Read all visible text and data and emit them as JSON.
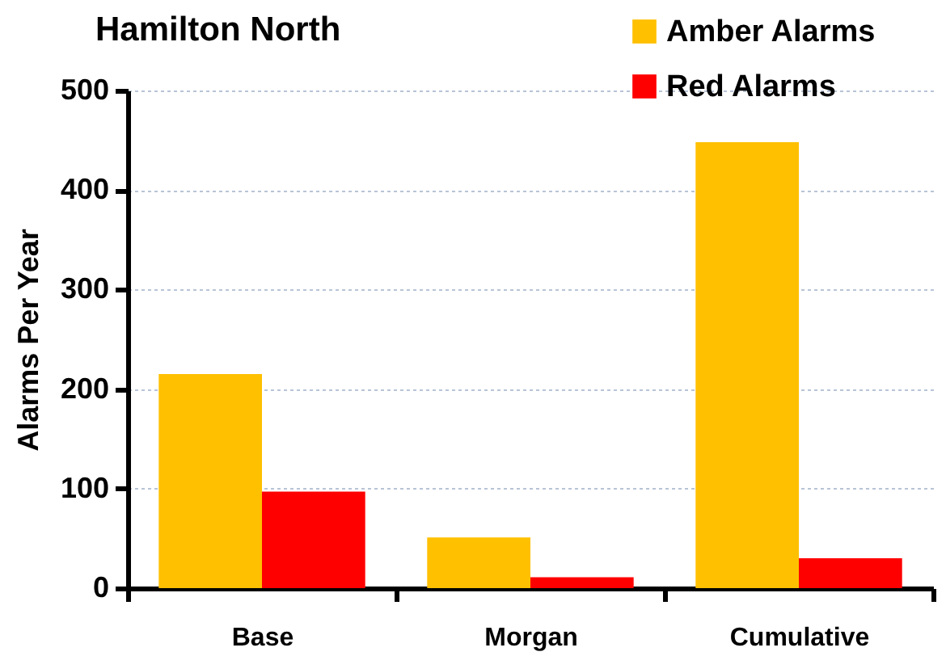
{
  "chart_data": {
    "type": "bar",
    "title": "Hamilton North",
    "ylabel": "Alarms Per Year",
    "categories": [
      "Base",
      "Morgan",
      "Cumulative"
    ],
    "series": [
      {
        "name": "Amber Alarms",
        "color": "#ffc000",
        "values": [
          215,
          51,
          448
        ]
      },
      {
        "name": "Red Alarms",
        "color": "#ff0000",
        "values": [
          97,
          11,
          30
        ]
      }
    ],
    "ylim": [
      0,
      500
    ],
    "yticks": [
      0,
      100,
      200,
      300,
      400,
      500
    ],
    "grid": "y",
    "legend": "top right"
  }
}
